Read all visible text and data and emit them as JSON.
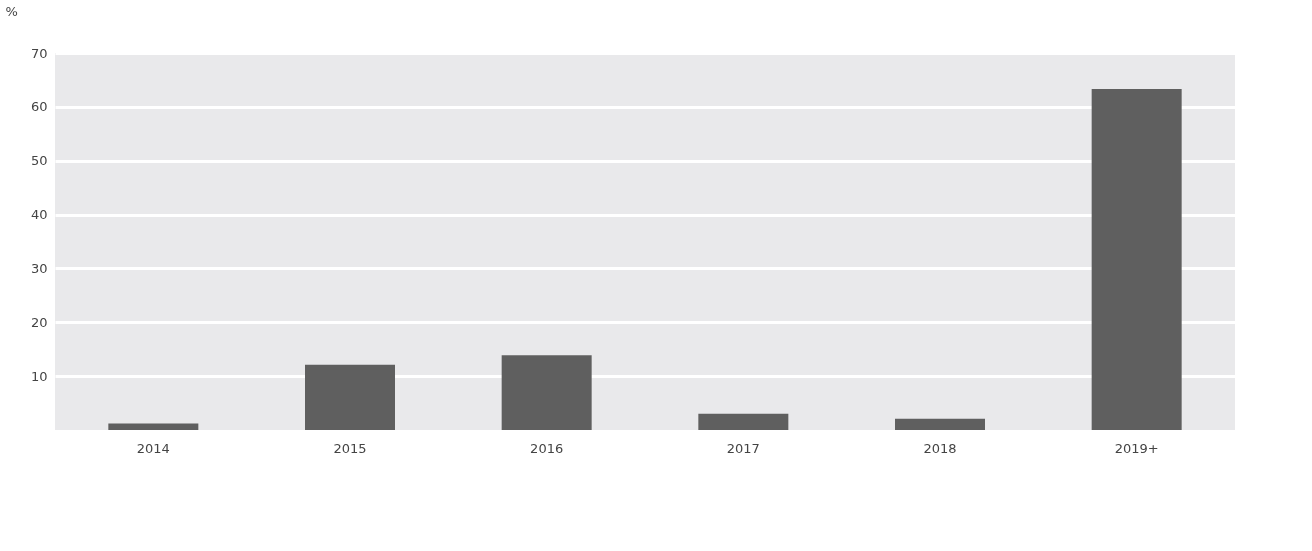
{
  "chart_data": {
    "type": "bar",
    "ylabel": "%",
    "categories": [
      "2014",
      "2015",
      "2016",
      "2017",
      "2018",
      "2019+"
    ],
    "values": [
      1.2,
      12.1,
      13.9,
      3.0,
      2.1,
      63.3
    ],
    "color": "#5f5f5f",
    "ylim": [
      0,
      70
    ],
    "yticks": [
      10,
      20,
      30,
      40,
      50,
      60,
      70
    ],
    "grid": "y"
  }
}
